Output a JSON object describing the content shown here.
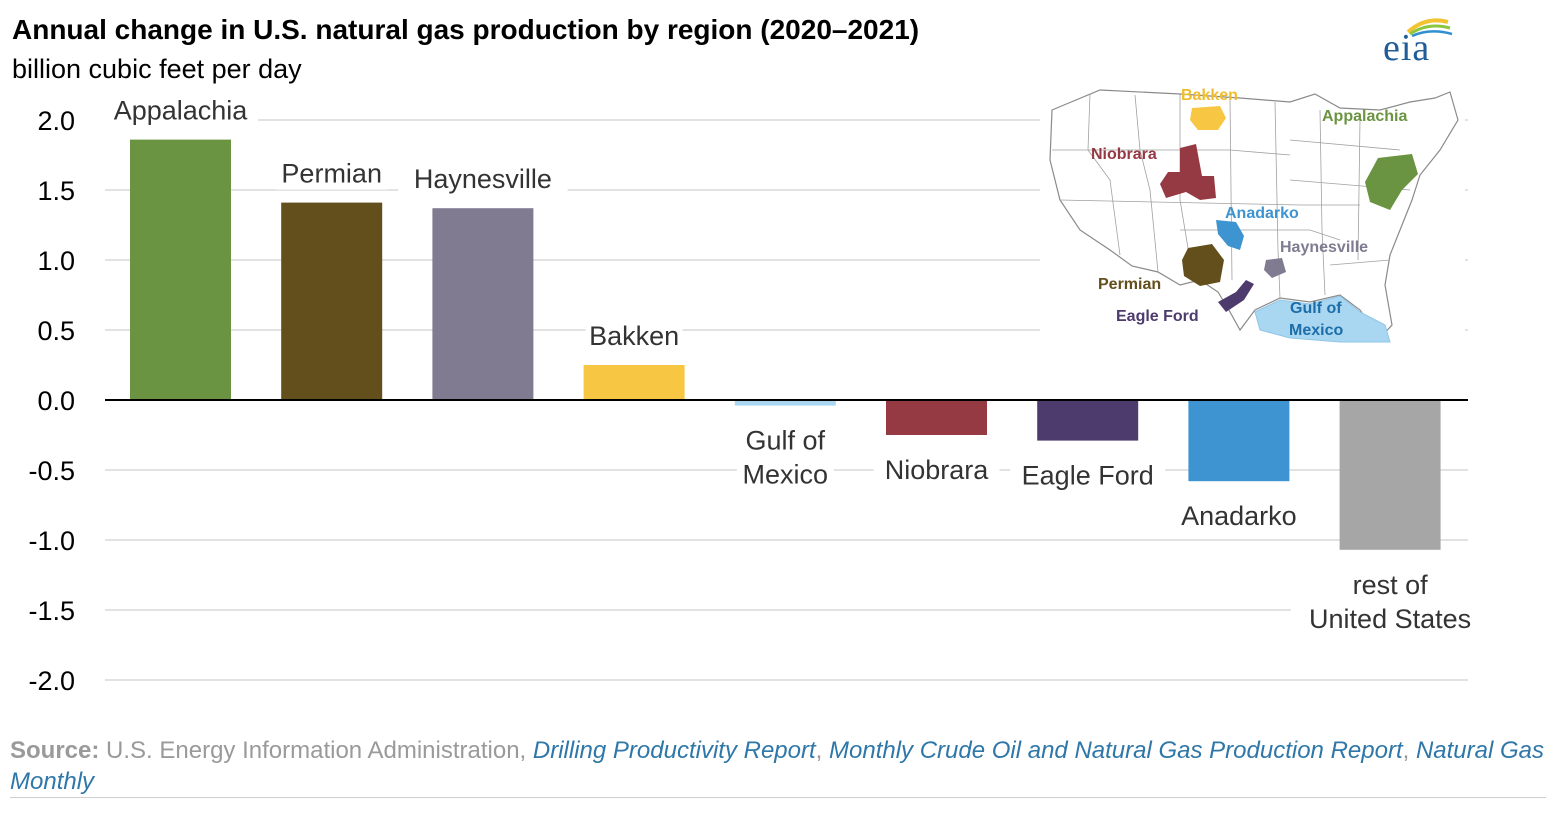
{
  "header": {
    "title": "Annual change in U.S. natural gas production by region (2020–2021)",
    "subtitle": "billion cubic feet per day",
    "logo_text": "eia"
  },
  "map": {
    "labels": {
      "bakken": "Bakken",
      "niobrara": "Niobrara",
      "appalachia": "Appalachia",
      "anadarko": "Anadarko",
      "haynesville": "Haynesville",
      "permian": "Permian",
      "eagle_ford": "Eagle Ford",
      "gulf_1": "Gulf of",
      "gulf_2": "Mexico"
    }
  },
  "chart_data": {
    "type": "bar",
    "title": "Annual change in U.S. natural gas production by region (2020–2021)",
    "ylabel": "billion cubic feet per day",
    "xlabel": "",
    "ylim": [
      -2.0,
      2.0
    ],
    "yticks": [
      "2.0",
      "1.5",
      "1.0",
      "0.5",
      "0.0",
      "-0.5",
      "-1.0",
      "-1.5",
      "-2.0"
    ],
    "grid": true,
    "categories": [
      {
        "label": [
          "Appalachia"
        ],
        "value": 1.86,
        "color": "#6a9441"
      },
      {
        "label": [
          "Permian"
        ],
        "value": 1.41,
        "color": "#634f1c"
      },
      {
        "label": [
          "Haynesville"
        ],
        "value": 1.37,
        "color": "#807b91"
      },
      {
        "label": [
          "Bakken"
        ],
        "value": 0.25,
        "color": "#f7c744"
      },
      {
        "label": [
          "Gulf of",
          "Mexico"
        ],
        "value": -0.04,
        "color": "#a9d7f2"
      },
      {
        "label": [
          "Niobrara"
        ],
        "value": -0.25,
        "color": "#953a43"
      },
      {
        "label": [
          "Eagle Ford"
        ],
        "value": -0.29,
        "color": "#4d3b6e"
      },
      {
        "label": [
          "Anadarko"
        ],
        "value": -0.58,
        "color": "#3e94d0"
      },
      {
        "label": [
          "rest of",
          "United States"
        ],
        "value": -1.07,
        "color": "#a6a6a6"
      }
    ]
  },
  "source": {
    "label": "Source:",
    "text": " U.S. Energy Information Administration, ",
    "link1": "Drilling Productivity Report",
    "sep": ", ",
    "link2": "Monthly Crude Oil and Natural Gas Production Report",
    "sep2": ", ",
    "link3": "Natural Gas Monthly"
  }
}
